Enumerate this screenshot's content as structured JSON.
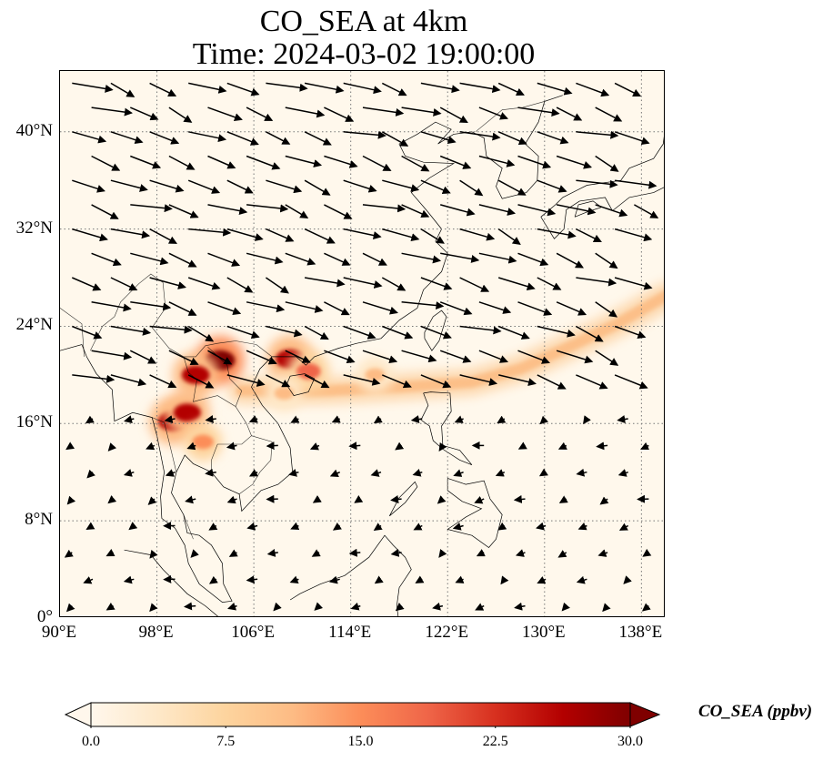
{
  "title": {
    "line1": "CO_SEA at 4km",
    "line2": "Time: 2024-03-02 19:00:00"
  },
  "map": {
    "lon_range": [
      90,
      140
    ],
    "lat_range": [
      0,
      45
    ],
    "gridlines": "dotted",
    "lat_ticks": [
      {
        "value": 0,
        "label": "0°"
      },
      {
        "value": 8,
        "label": "8°N"
      },
      {
        "value": 16,
        "label": "16°N"
      },
      {
        "value": 24,
        "label": "24°N"
      },
      {
        "value": 32,
        "label": "32°N"
      },
      {
        "value": 40,
        "label": "40°N"
      }
    ],
    "lon_ticks": [
      {
        "value": 90,
        "label": "90°E"
      },
      {
        "value": 98,
        "label": "98°E"
      },
      {
        "value": 106,
        "label": "106°E"
      },
      {
        "value": 114,
        "label": "114°E"
      },
      {
        "value": 122,
        "label": "122°E"
      },
      {
        "value": 130,
        "label": "130°E"
      },
      {
        "value": 138,
        "label": "138°E"
      }
    ],
    "hotspots": [
      {
        "lon": 103.2,
        "lat": 21.2,
        "value": 30
      },
      {
        "lon": 101.2,
        "lat": 20.0,
        "value": 26
      },
      {
        "lon": 109.0,
        "lat": 21.3,
        "value": 28
      },
      {
        "lon": 110.5,
        "lat": 20.3,
        "value": 20
      },
      {
        "lon": 99.3,
        "lat": 16.2,
        "value": 28
      },
      {
        "lon": 100.5,
        "lat": 16.9,
        "value": 25
      },
      {
        "lon": 101.8,
        "lat": 14.5,
        "value": 14
      },
      {
        "lon": 108.5,
        "lat": 18.5,
        "value": 12
      },
      {
        "lon": 116.0,
        "lat": 20.0,
        "value": 12
      }
    ],
    "plume": [
      {
        "lon": 105,
        "lat": 18.7
      },
      {
        "lon": 112,
        "lat": 18.7
      },
      {
        "lon": 118,
        "lat": 19.0
      },
      {
        "lon": 124,
        "lat": 19.4
      },
      {
        "lon": 128,
        "lat": 20.5
      },
      {
        "lon": 132,
        "lat": 22.3
      },
      {
        "lon": 136,
        "lat": 24.2
      },
      {
        "lon": 140,
        "lat": 26.5
      }
    ],
    "wind_vectors_north": {
      "lat_from": 20,
      "lat_to": 44,
      "step": 2,
      "lon_step": 3.2,
      "u_base": 1.0,
      "v_base": -0.35
    },
    "wind_vectors_south": {
      "lat_from": 1,
      "lat_to": 18,
      "step": 2.2,
      "lon_step": 3.4,
      "u_base": -0.5,
      "v_base": -0.25
    }
  },
  "colorbar": {
    "label": "CO_SEA (ppbv)",
    "min": 0.0,
    "max": 30.0,
    "ticks": [
      "0.0",
      "7.5",
      "15.0",
      "22.5",
      "30.0"
    ],
    "colormap": "OrRd",
    "colors": [
      "#fff7ec",
      "#fee8c8",
      "#fdd49e",
      "#fdbb84",
      "#fc8d59",
      "#ef6548",
      "#d7301f",
      "#b30000",
      "#7f0000"
    ],
    "extend": "both"
  }
}
